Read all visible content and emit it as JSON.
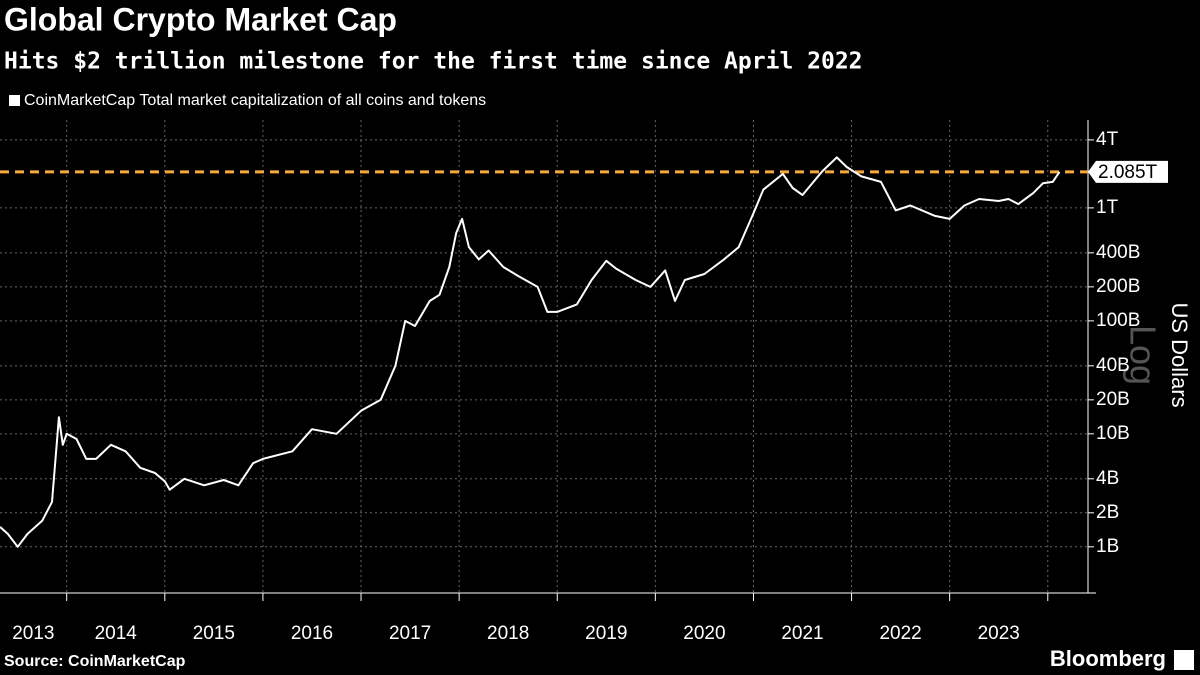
{
  "chart_data": {
    "type": "line",
    "title": "Global Crypto Market Cap",
    "subtitle": "Hits $2 trillion milestone for the first time since April 2022",
    "y_label": "US Dollars",
    "scale_label": "Log",
    "source": "Source: CoinMarketCap",
    "brand": "Bloomberg",
    "log_scale": true,
    "grid": true,
    "y_axis_side": "right",
    "legend": "top-left",
    "xlim": [
      2013.32,
      2024.41
    ],
    "xticks": [
      {
        "value": 2013,
        "label": "2013"
      },
      {
        "value": 2014,
        "label": "2014"
      },
      {
        "value": 2015,
        "label": "2015"
      },
      {
        "value": 2016,
        "label": "2016"
      },
      {
        "value": 2017,
        "label": "2017"
      },
      {
        "value": 2018,
        "label": "2018"
      },
      {
        "value": 2019,
        "label": "2019"
      },
      {
        "value": 2020,
        "label": "2020"
      },
      {
        "value": 2021,
        "label": "2021"
      },
      {
        "value": 2022,
        "label": "2022"
      },
      {
        "value": 2023,
        "label": "2023"
      },
      {
        "value": 2024,
        "label": null
      }
    ],
    "ylim": [
      0.39,
      6000
    ],
    "yticks": [
      {
        "value": 1,
        "label": "1B"
      },
      {
        "value": 2,
        "label": "2B"
      },
      {
        "value": 4,
        "label": "4B"
      },
      {
        "value": 10,
        "label": "10B"
      },
      {
        "value": 20,
        "label": "20B"
      },
      {
        "value": 40,
        "label": "40B"
      },
      {
        "value": 100,
        "label": "100B"
      },
      {
        "value": 200,
        "label": "200B"
      },
      {
        "value": 400,
        "label": "400B"
      },
      {
        "value": 1000,
        "label": "1T"
      },
      {
        "value": 4000,
        "label": "4T"
      }
    ],
    "reference_line": {
      "value": 2085,
      "label": "2.085T",
      "color": "#f5a93c"
    },
    "series": [
      {
        "name": "CoinMarketCap Total market capitalization of all coins and tokens",
        "color": "#ffffff",
        "x": [
          2013.32,
          2013.4,
          2013.5,
          2013.6,
          2013.75,
          2013.85,
          2013.92,
          2013.96,
          2014.0,
          2014.1,
          2014.2,
          2014.3,
          2014.45,
          2014.6,
          2014.75,
          2014.9,
          2015.0,
          2015.05,
          2015.2,
          2015.4,
          2015.6,
          2015.75,
          2015.9,
          2016.0,
          2016.3,
          2016.5,
          2016.75,
          2017.0,
          2017.2,
          2017.35,
          2017.45,
          2017.55,
          2017.7,
          2017.8,
          2017.9,
          2017.97,
          2018.03,
          2018.1,
          2018.2,
          2018.3,
          2018.45,
          2018.6,
          2018.8,
          2018.9,
          2019.0,
          2019.2,
          2019.35,
          2019.5,
          2019.6,
          2019.8,
          2019.95,
          2020.1,
          2020.2,
          2020.3,
          2020.5,
          2020.7,
          2020.85,
          2021.0,
          2021.1,
          2021.3,
          2021.4,
          2021.5,
          2021.7,
          2021.85,
          2021.95,
          2022.1,
          2022.3,
          2022.45,
          2022.6,
          2022.85,
          2023.0,
          2023.15,
          2023.3,
          2023.5,
          2023.6,
          2023.7,
          2023.85,
          2023.95,
          2024.05,
          2024.12
        ],
        "values": [
          1.5,
          1.3,
          1.0,
          1.3,
          1.7,
          2.5,
          14,
          8,
          10,
          9,
          6,
          6,
          8,
          7,
          5,
          4.5,
          3.8,
          3.2,
          4,
          3.5,
          3.9,
          3.5,
          5.5,
          6,
          7,
          11,
          10,
          16,
          20,
          40,
          100,
          90,
          150,
          170,
          300,
          600,
          800,
          450,
          350,
          420,
          300,
          250,
          200,
          120,
          120,
          140,
          230,
          340,
          290,
          230,
          200,
          280,
          150,
          230,
          260,
          350,
          450,
          900,
          1450,
          2000,
          1500,
          1300,
          2100,
          2800,
          2300,
          1900,
          1700,
          950,
          1050,
          850,
          800,
          1050,
          1200,
          1150,
          1200,
          1080,
          1350,
          1650,
          1700,
          2085
        ]
      }
    ]
  }
}
